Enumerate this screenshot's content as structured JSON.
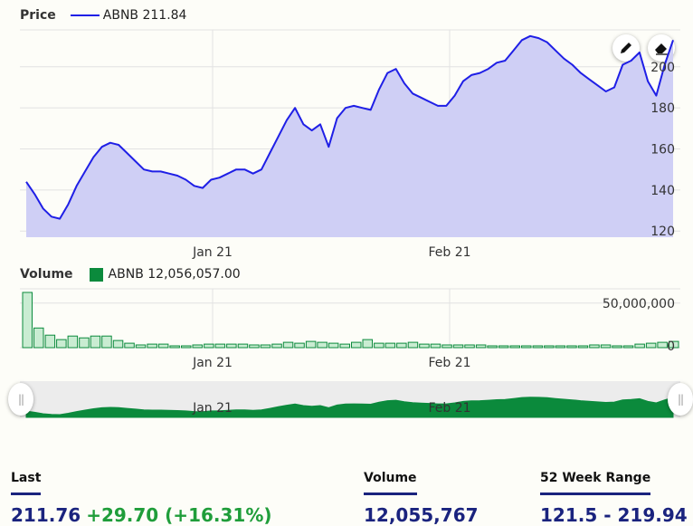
{
  "price_legend": {
    "title": "Price",
    "series_label": "ABNB 211.84"
  },
  "volume_legend": {
    "title": "Volume",
    "series_label": "ABNB 12,056,057.00"
  },
  "colors": {
    "price_line": "#1f1fe6",
    "price_fill": "#cfcff5",
    "volume_bar": "#0b8a3c",
    "volume_bar_fill": "#c9ecd2"
  },
  "tools": {
    "draw": "pencil-icon",
    "erase": "eraser-icon"
  },
  "navigator": {
    "x_tick_labels": [
      "Jan 21",
      "Feb 21"
    ]
  },
  "stats": {
    "last": {
      "label": "Last",
      "value": "211.76",
      "change": "+29.70 (+16.31%)"
    },
    "volume": {
      "label": "Volume",
      "value": "12,055,767"
    },
    "range": {
      "label": "52 Week Range",
      "value": "121.5 - 219.94"
    }
  },
  "chart_data": [
    {
      "type": "area",
      "title": "Price",
      "series": [
        {
          "name": "ABNB 211.84",
          "values": [
            144,
            138,
            131,
            127,
            126,
            133,
            142,
            149,
            156,
            161,
            163,
            162,
            158,
            154,
            150,
            149,
            149,
            148,
            147,
            145,
            142,
            141,
            145,
            146,
            148,
            150,
            150,
            148,
            150,
            158,
            166,
            174,
            180,
            172,
            169,
            172,
            161,
            175,
            180,
            181,
            180,
            179,
            189,
            197,
            199,
            192,
            187,
            185,
            183,
            181,
            181,
            186,
            193,
            196,
            197,
            199,
            202,
            203,
            208,
            213,
            215,
            214,
            212,
            208,
            204,
            201,
            197,
            194,
            191,
            188,
            190,
            201,
            203,
            207,
            193,
            186,
            201,
            213
          ]
        }
      ],
      "x_tick_labels": [
        "Jan 21",
        "Feb 21"
      ],
      "y_ticks": [
        120,
        140,
        160,
        180,
        200
      ],
      "ylim": [
        117,
        218
      ]
    },
    {
      "type": "bar",
      "title": "Volume",
      "series": [
        {
          "name": "ABNB 12,056,057.00",
          "values": [
            62000000,
            22000000,
            14000000,
            9000000,
            13000000,
            11000000,
            13000000,
            13000000,
            8000000,
            5000000,
            3000000,
            4000000,
            4000000,
            2000000,
            2000000,
            3000000,
            4000000,
            4000000,
            4000000,
            4000000,
            3000000,
            3000000,
            4000000,
            6000000,
            5000000,
            7000000,
            6000000,
            5000000,
            4000000,
            6000000,
            9000000,
            5000000,
            5000000,
            5000000,
            6000000,
            4000000,
            4000000,
            3000000,
            3000000,
            3000000,
            3000000,
            2000000,
            2000000,
            2000000,
            2000000,
            2000000,
            2000000,
            2000000,
            2000000,
            2000000,
            3000000,
            3000000,
            2000000,
            2000000,
            4000000,
            5000000,
            6000000,
            7000000
          ]
        }
      ],
      "x_tick_labels": [
        "Jan 21",
        "Feb 21"
      ],
      "y_ticks": [
        0,
        50000000
      ],
      "y_tick_labels": [
        "0",
        "50,000,000"
      ],
      "ylim": [
        0,
        64000000
      ]
    }
  ]
}
